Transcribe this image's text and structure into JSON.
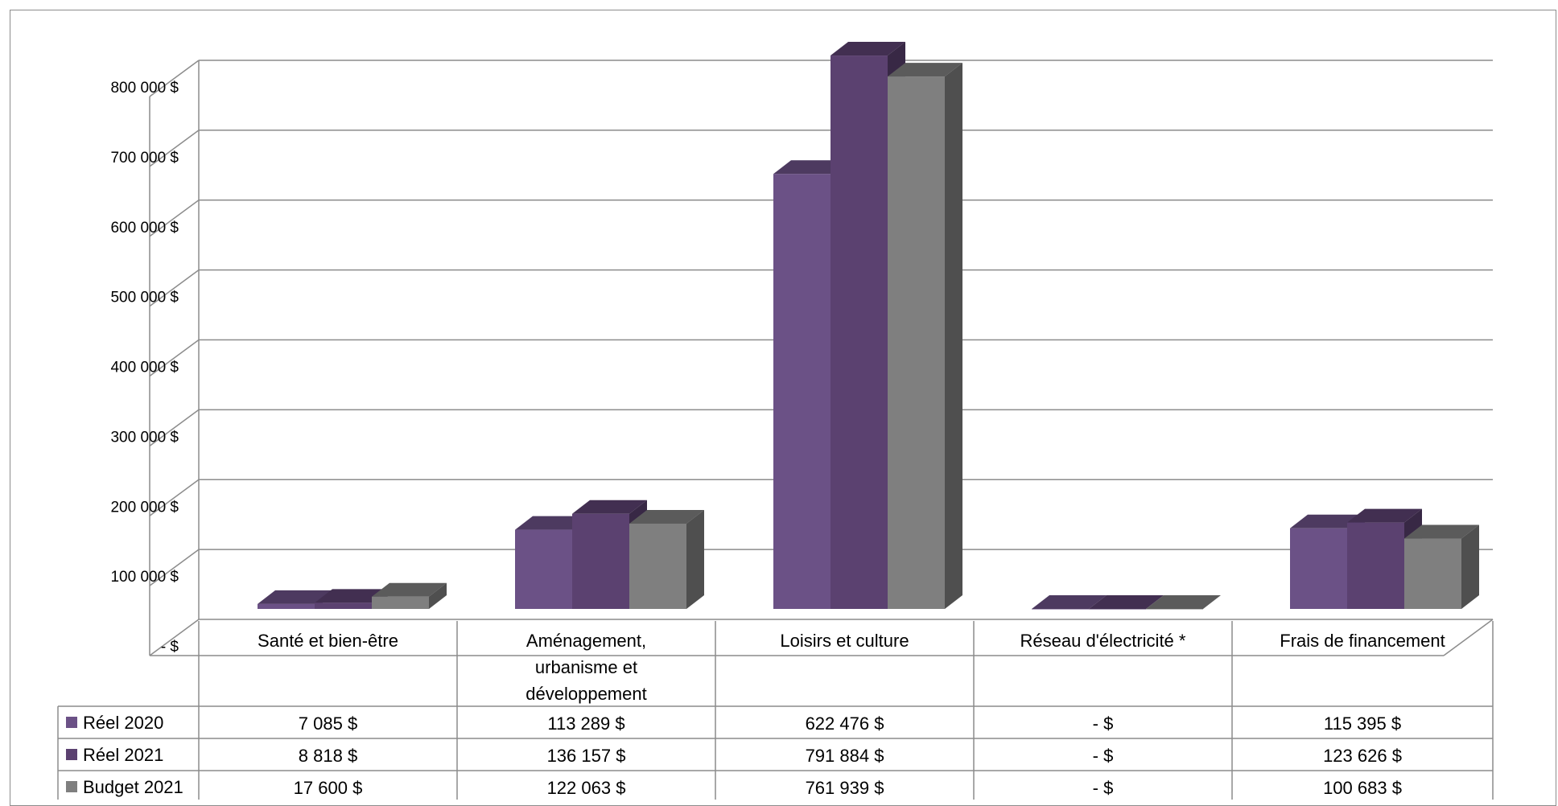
{
  "chart_data": {
    "type": "bar",
    "title": "",
    "xlabel": "",
    "ylabel": "",
    "ylim": [
      0,
      800000
    ],
    "grid": true,
    "legend_placement": "data-table-left",
    "y_ticks": [
      "-  $",
      "100 000  $",
      "200 000  $",
      "300 000  $",
      "400 000  $",
      "500 000  $",
      "600 000  $",
      "700 000  $",
      "800 000  $"
    ],
    "categories": [
      "Santé et bien-être",
      "Aménagement, urbanisme et développement",
      "Loisirs et culture",
      "Réseau d'électricité *",
      "Frais de financement"
    ],
    "series": [
      {
        "name": "Réel 2020",
        "color": "#6b5186",
        "values": [
          7085,
          113289,
          622476,
          0,
          115395
        ],
        "labels": [
          "7 085  $",
          "113 289  $",
          "622 476  $",
          "-    $",
          "115 395  $"
        ]
      },
      {
        "name": "Réel 2021",
        "color": "#5b4170",
        "values": [
          8818,
          136157,
          791884,
          0,
          123626
        ],
        "labels": [
          "8 818  $",
          "136 157  $",
          "791 884  $",
          "-    $",
          "123 626  $"
        ]
      },
      {
        "name": "Budget 2021",
        "color": "#7f7f7f",
        "values": [
          17600,
          122063,
          761939,
          0,
          100683
        ],
        "labels": [
          "17 600  $",
          "122 063  $",
          "761 939  $",
          "-    $",
          "100 683  $"
        ]
      }
    ]
  }
}
